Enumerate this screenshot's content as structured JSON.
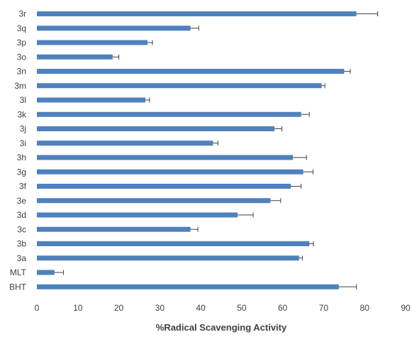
{
  "chart_data": {
    "type": "bar",
    "orientation": "horizontal",
    "categories": [
      "3r",
      "3q",
      "3p",
      "3o",
      "3n",
      "3m",
      "3l",
      "3k",
      "3j",
      "3i",
      "3h",
      "3g",
      "3f",
      "3e",
      "3d",
      "3c",
      "3b",
      "3a",
      "MLT",
      "BHT"
    ],
    "values": [
      78.0,
      37.5,
      27.0,
      18.5,
      75.0,
      69.5,
      26.5,
      64.5,
      58.0,
      43.0,
      62.5,
      65.0,
      62.0,
      57.0,
      49.0,
      37.5,
      66.5,
      64.0,
      4.3,
      73.7
    ],
    "errors": [
      5.2,
      2.0,
      1.2,
      1.5,
      1.5,
      0.8,
      1.0,
      2.0,
      1.8,
      1.2,
      3.3,
      2.4,
      2.5,
      2.5,
      3.8,
      1.8,
      1.0,
      0.8,
      2.2,
      4.3
    ],
    "xlabel": "%Radical Scavenging Activity",
    "ylabel": "",
    "xlim": [
      0,
      90
    ],
    "xticks": [
      "0",
      "10",
      "20",
      "30",
      "40",
      "50",
      "60",
      "70",
      "80",
      "90"
    ],
    "grid": false,
    "legend": "none",
    "bar_color": "#4f81bd",
    "error_color": "#404040"
  }
}
